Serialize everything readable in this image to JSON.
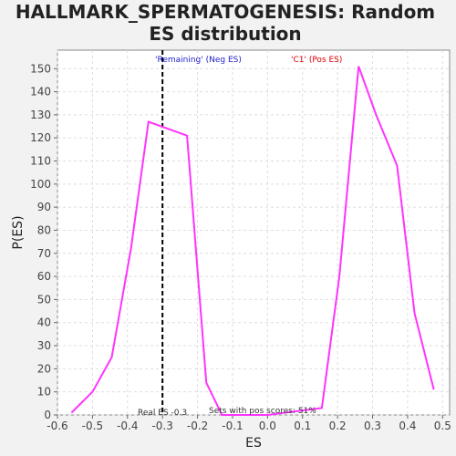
{
  "chart_data": {
    "type": "line",
    "title": [
      "HALLMARK_SPERMATOGENESIS: Random",
      "ES distribution"
    ],
    "xlabel": "ES",
    "ylabel": "P(ES)",
    "xlim": [
      -0.6,
      0.52
    ],
    "ylim": [
      0,
      158
    ],
    "xticks": [
      -0.6,
      -0.5,
      -0.4,
      -0.3,
      -0.2,
      -0.1,
      0.0,
      0.1,
      0.2,
      0.3,
      0.4,
      0.5
    ],
    "xtick_labels": [
      "-0.6",
      "-0.5",
      "-0.4",
      "-0.3",
      "-0.2",
      "-0.1",
      "0.0",
      "0.1",
      "0.2",
      "0.3",
      "0.4",
      "0.5"
    ],
    "yticks": [
      0,
      10,
      20,
      30,
      40,
      50,
      60,
      70,
      80,
      90,
      100,
      110,
      120,
      130,
      140,
      150
    ],
    "ytick_labels": [
      "0",
      "10",
      "20",
      "30",
      "40",
      "50",
      "60",
      "70",
      "80",
      "90",
      "100",
      "110",
      "120",
      "130",
      "140",
      "150"
    ],
    "grid": true,
    "series": [
      {
        "color": "#ff33ff",
        "x": [
          -0.56,
          -0.5,
          -0.445,
          -0.39,
          -0.34,
          -0.23,
          -0.175,
          -0.13,
          0.0,
          0.155,
          0.205,
          0.26,
          0.31,
          0.37,
          0.42,
          0.475
        ],
        "y": [
          1,
          10,
          25,
          72,
          127,
          121,
          14,
          0,
          0,
          3,
          60,
          151,
          130,
          108,
          44,
          11
        ]
      }
    ],
    "real_es": -0.3,
    "annotations": {
      "neg_label": "'Remaining' (Neg ES)",
      "pos_label": "'C1' (Pos ES)",
      "real_es_label": "Real ES -0.3",
      "pos_scores_label": "Sets with pos scores: 51%"
    },
    "colors": {
      "neg": "#2222cc",
      "pos": "#e00000",
      "real_es_line": "#000000",
      "grid": "#dddddd"
    }
  }
}
